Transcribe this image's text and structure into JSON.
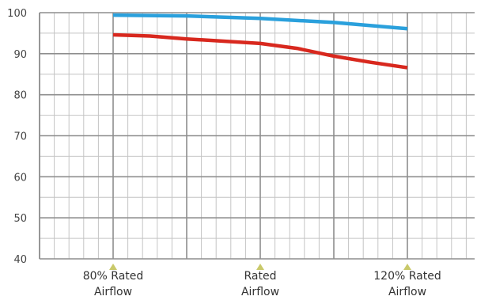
{
  "chart_data": {
    "type": "line",
    "title": "",
    "xlabel": "",
    "ylabel": "",
    "ylim": [
      40,
      100
    ],
    "yticks": [
      40,
      50,
      60,
      70,
      80,
      90,
      100
    ],
    "xlim": [
      70,
      130
    ],
    "x_tick_labels": [
      {
        "x": 80,
        "lines": [
          "80%  Rated",
          "Airflow"
        ],
        "marker_color": "#c9c96a"
      },
      {
        "x": 100,
        "lines": [
          "Rated",
          "Airflow"
        ],
        "marker_color": "#c9c96a"
      },
      {
        "x": 120,
        "lines": [
          "120%  Rated",
          "Airflow"
        ],
        "marker_color": "#c9c96a"
      }
    ],
    "grid": true,
    "legend": "none",
    "series": [
      {
        "color": "#2aa0dc",
        "x": [
          80,
          90,
          100,
          110,
          120
        ],
        "y": [
          99.4,
          99.2,
          98.6,
          97.6,
          96.1
        ]
      },
      {
        "color": "#d8281e",
        "x": [
          80,
          85,
          90,
          100,
          105,
          110,
          115,
          120
        ],
        "y": [
          94.6,
          94.3,
          93.6,
          92.5,
          91.3,
          89.4,
          87.9,
          86.6
        ]
      }
    ]
  }
}
